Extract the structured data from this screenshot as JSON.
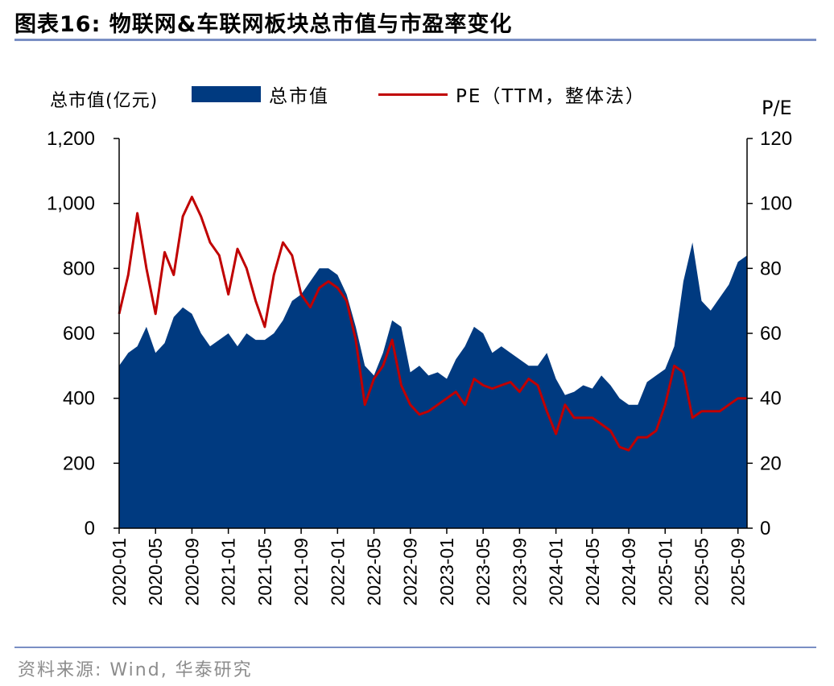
{
  "header": {
    "title": "图表16:  物联网&车联网板块总市值与市盈率变化"
  },
  "footer": {
    "source": "资料来源: Wind, 华泰研究"
  },
  "colors": {
    "area": "#003a80",
    "line": "#c00000",
    "rule": "#7a8fc4"
  },
  "chart_data": {
    "type": "area+line",
    "title": "",
    "ylabel_left": "总市值(亿元)",
    "ylabel_right": "P/E",
    "ylim_left": [
      0,
      1200
    ],
    "ylim_right": [
      0,
      120
    ],
    "yticks_left": [
      "0",
      "200",
      "400",
      "600",
      "800",
      "1,000",
      "1,200"
    ],
    "yticks_right": [
      "0",
      "20",
      "40",
      "60",
      "80",
      "100",
      "120"
    ],
    "x_tick_labels": [
      "2020-01",
      "2020-05",
      "2020-09",
      "2021-01",
      "2021-05",
      "2021-09",
      "2022-01",
      "2022-05",
      "2022-09",
      "2023-01",
      "2023-05",
      "2023-09",
      "2024-01",
      "2024-05",
      "2024-09",
      "2025-01",
      "2025-05",
      "2025-09"
    ],
    "x_months": [
      "2020-01",
      "2020-02",
      "2020-03",
      "2020-04",
      "2020-05",
      "2020-06",
      "2020-07",
      "2020-08",
      "2020-09",
      "2020-10",
      "2020-11",
      "2020-12",
      "2021-01",
      "2021-02",
      "2021-03",
      "2021-04",
      "2021-05",
      "2021-06",
      "2021-07",
      "2021-08",
      "2021-09",
      "2021-10",
      "2021-11",
      "2021-12",
      "2022-01",
      "2022-02",
      "2022-03",
      "2022-04",
      "2022-05",
      "2022-06",
      "2022-07",
      "2022-08",
      "2022-09",
      "2022-10",
      "2022-11",
      "2022-12",
      "2023-01",
      "2023-02",
      "2023-03",
      "2023-04",
      "2023-05",
      "2023-06",
      "2023-07",
      "2023-08",
      "2023-09",
      "2023-10",
      "2023-11",
      "2023-12",
      "2024-01",
      "2024-02",
      "2024-03",
      "2024-04",
      "2024-05",
      "2024-06",
      "2024-07",
      "2024-08",
      "2024-09",
      "2024-10",
      "2024-11",
      "2024-12",
      "2025-01",
      "2025-02",
      "2025-03",
      "2025-04",
      "2025-05",
      "2025-06",
      "2025-07",
      "2025-08",
      "2025-09",
      "2025-10"
    ],
    "series": [
      {
        "name": "总市值",
        "type": "area",
        "axis": "left",
        "values": [
          500,
          540,
          560,
          620,
          540,
          570,
          650,
          680,
          660,
          600,
          560,
          580,
          600,
          560,
          600,
          580,
          580,
          600,
          640,
          700,
          720,
          760,
          800,
          800,
          780,
          720,
          620,
          500,
          470,
          540,
          640,
          620,
          480,
          500,
          470,
          480,
          460,
          520,
          560,
          620,
          600,
          540,
          560,
          540,
          520,
          500,
          500,
          540,
          460,
          410,
          420,
          440,
          430,
          470,
          440,
          400,
          380,
          380,
          450,
          470,
          490,
          560,
          760,
          880,
          700,
          670,
          710,
          750,
          820,
          840
        ]
      },
      {
        "name": "PE（TTM，整体法）",
        "type": "line",
        "axis": "right",
        "values": [
          66,
          78,
          97,
          80,
          66,
          85,
          78,
          96,
          102,
          96,
          88,
          84,
          72,
          86,
          80,
          70,
          62,
          78,
          88,
          84,
          72,
          68,
          74,
          76,
          74,
          70,
          58,
          38,
          46,
          50,
          58,
          44,
          38,
          35,
          36,
          38,
          40,
          42,
          38,
          46,
          44,
          43,
          44,
          45,
          42,
          46,
          44,
          36,
          29,
          38,
          34,
          34,
          34,
          32,
          30,
          25,
          24,
          28,
          28,
          30,
          38,
          50,
          48,
          34,
          36,
          36,
          36,
          38,
          40,
          40
        ]
      }
    ]
  }
}
